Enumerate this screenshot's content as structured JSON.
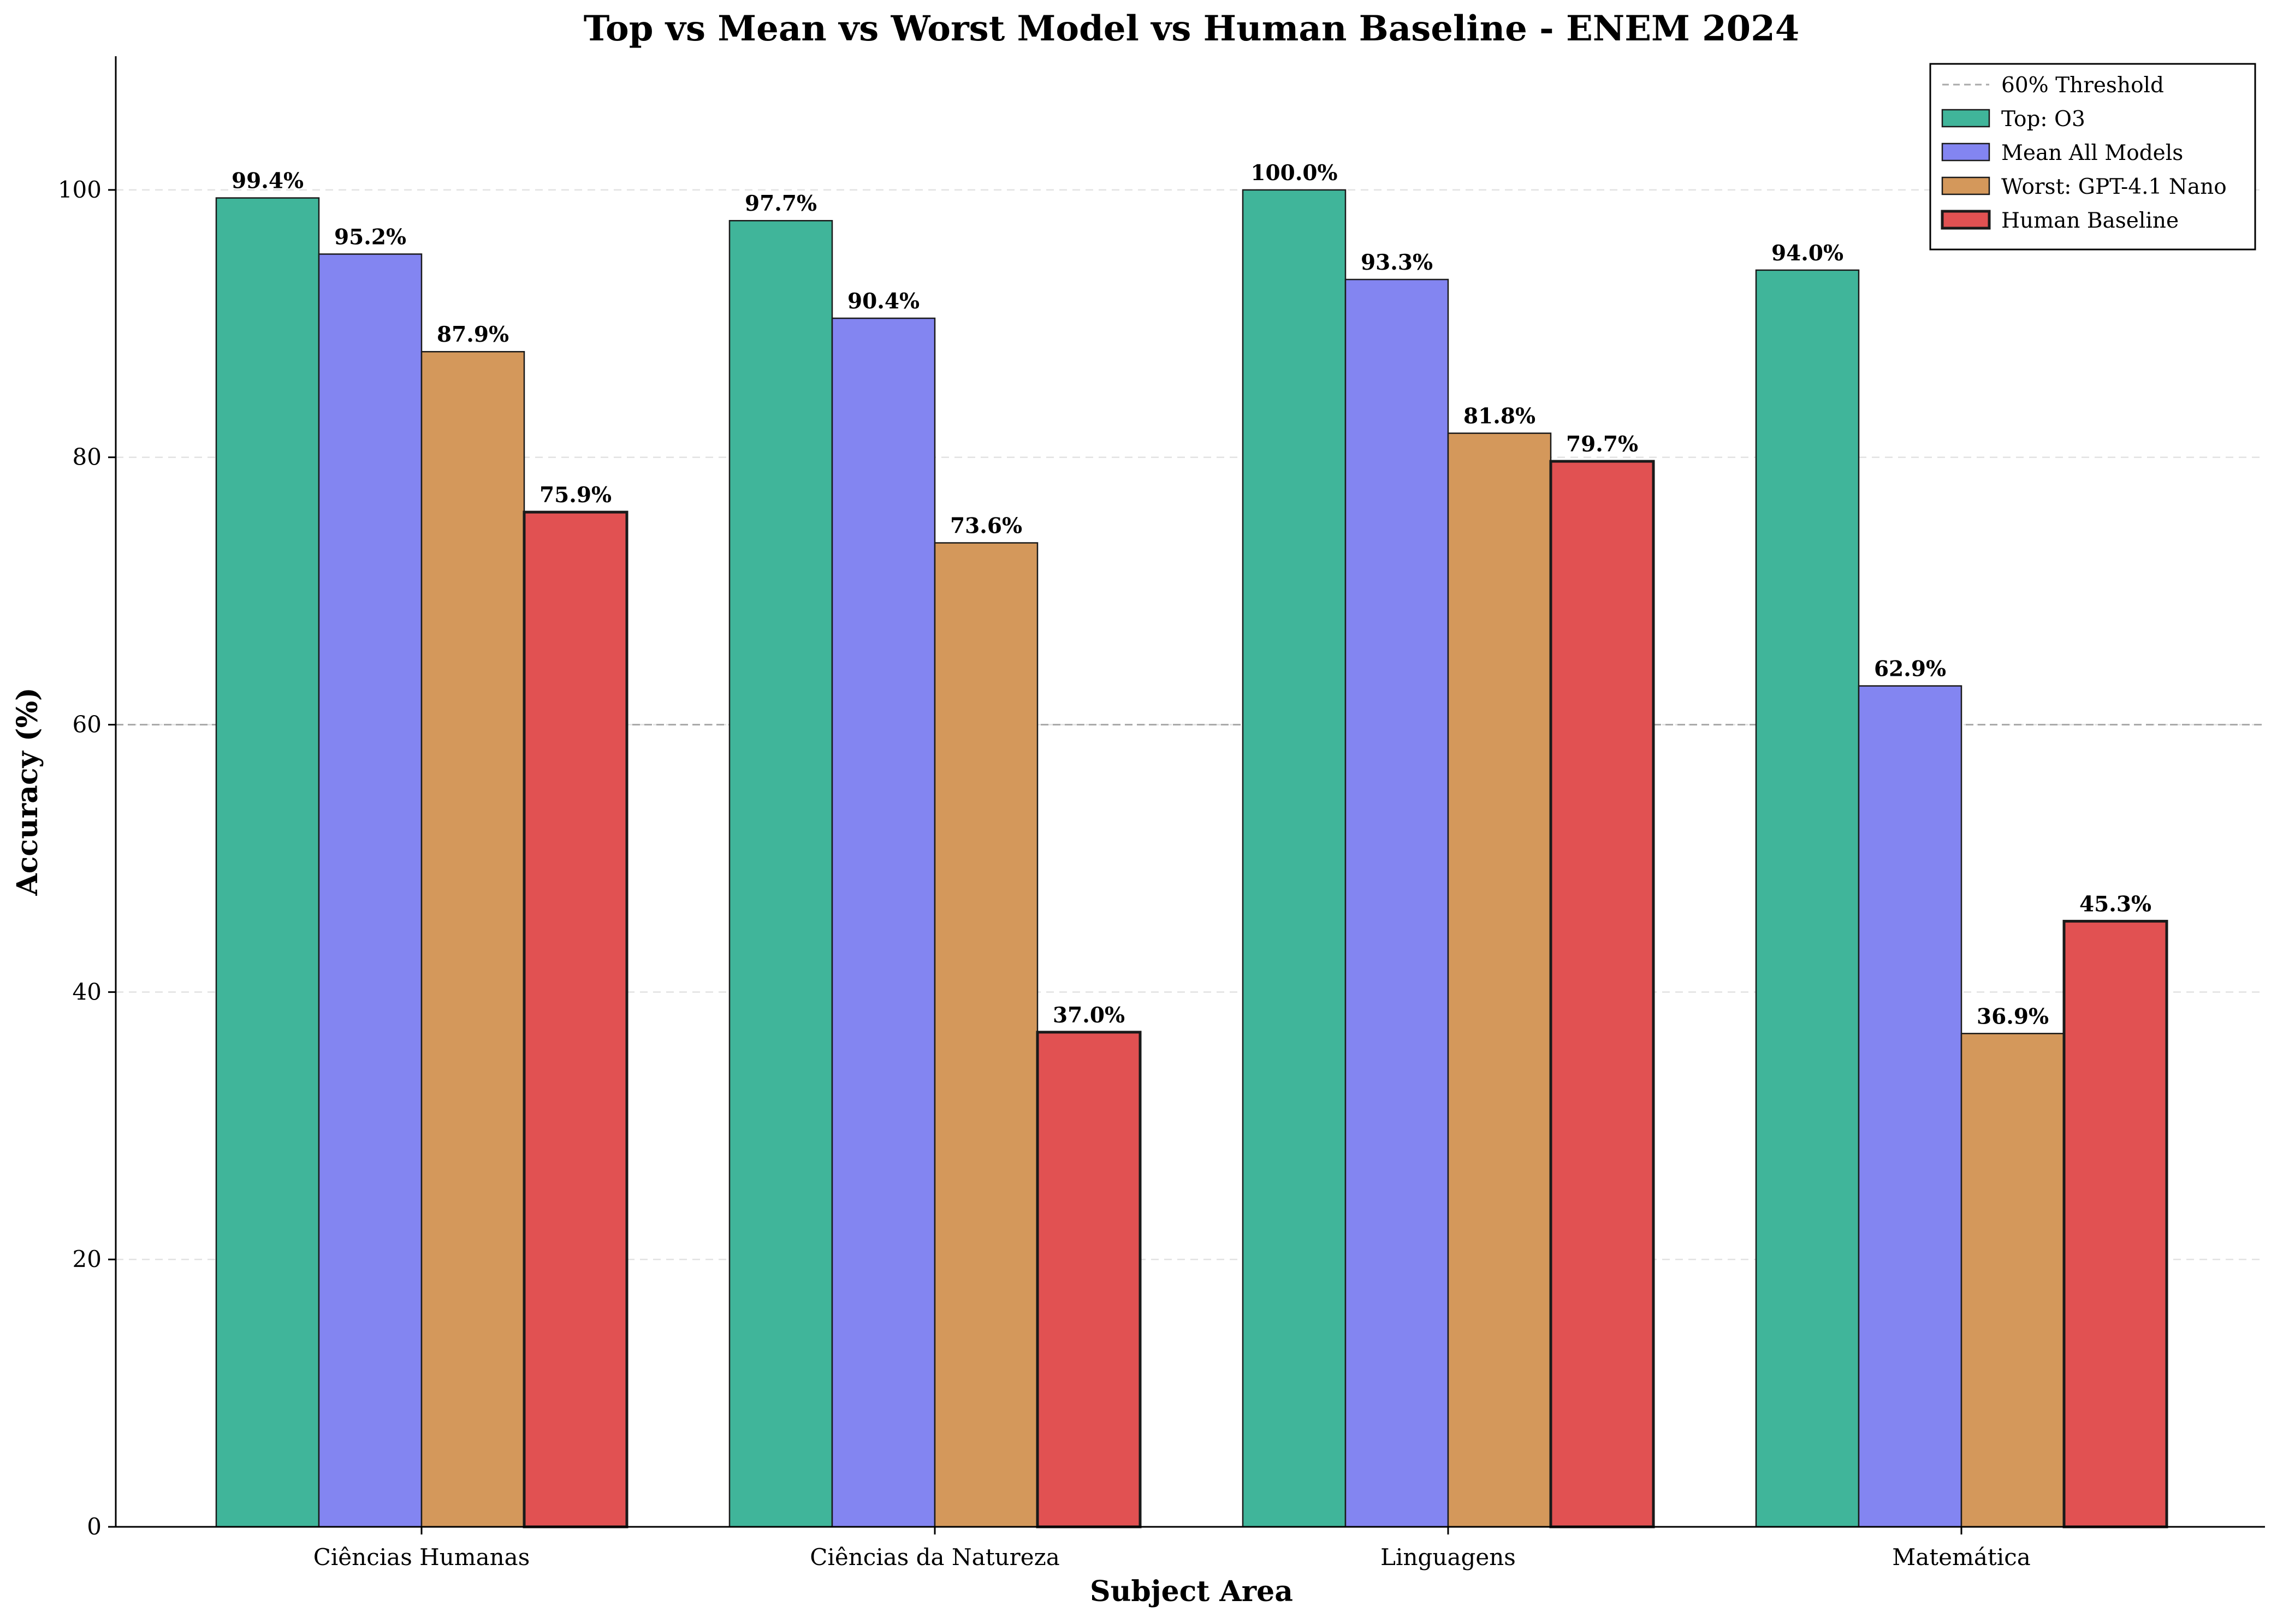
{
  "chart_data": {
    "type": "bar",
    "title": "Top vs Mean vs Worst Model vs Human Baseline - ENEM 2024",
    "xlabel": "Subject Area",
    "ylabel": "Accuracy (%)",
    "ylim": [
      0,
      110
    ],
    "yticks": [
      0,
      20,
      40,
      60,
      80,
      100
    ],
    "grid": "horizontal dashed",
    "legend_position": "top-right",
    "categories": [
      "Ciências Humanas",
      "Ciências da Natureza",
      "Linguagens",
      "Matemática"
    ],
    "threshold": {
      "name": "60% Threshold",
      "value": 60,
      "color": "#aaaaaa"
    },
    "series": [
      {
        "name": "Top: O3",
        "color": "#40b59a",
        "values": [
          99.4,
          97.7,
          100.0,
          94.0
        ]
      },
      {
        "name": "Mean All Models",
        "color": "#8385f1",
        "values": [
          95.2,
          90.4,
          93.3,
          62.9
        ]
      },
      {
        "name": "Worst: GPT-4.1 Nano",
        "color": "#d4985b",
        "values": [
          87.9,
          73.6,
          81.8,
          36.9
        ]
      },
      {
        "name": "Human Baseline",
        "color": "#e15152",
        "values": [
          75.9,
          37.0,
          79.7,
          45.3
        ]
      }
    ],
    "data_labels": [
      [
        "99.4%",
        "97.7%",
        "100.0%",
        "94.0%"
      ],
      [
        "95.2%",
        "90.4%",
        "93.3%",
        "62.9%"
      ],
      [
        "87.9%",
        "73.6%",
        "81.8%",
        "36.9%"
      ],
      [
        "75.9%",
        "37.0%",
        "79.7%",
        "45.3%"
      ]
    ]
  }
}
